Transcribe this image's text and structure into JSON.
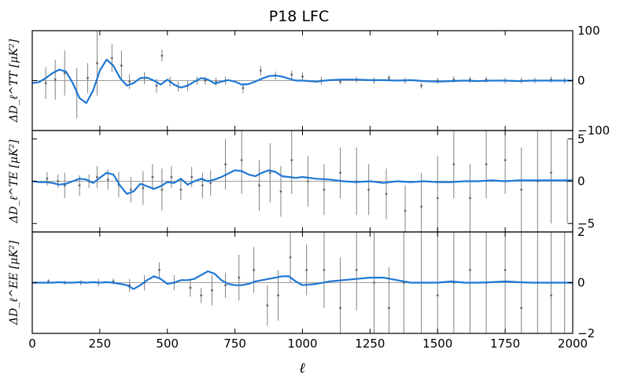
{
  "chart_data": {
    "type": "line",
    "title": "P18 LFC",
    "xlabel": "ℓ",
    "xlim": [
      0,
      2000
    ],
    "xticks": [
      0,
      250,
      500,
      750,
      1000,
      1250,
      1500,
      1750,
      2000
    ],
    "grid": false,
    "panels": [
      {
        "ylabel": "ΔD_ℓ^TT [μK²]",
        "ylim": [
          -100,
          100
        ],
        "yticks": [
          -100,
          0,
          100
        ],
        "curve": {
          "x": [
            0,
            25,
            50,
            75,
            100,
            125,
            150,
            175,
            200,
            225,
            250,
            275,
            300,
            325,
            350,
            375,
            400,
            425,
            450,
            475,
            500,
            525,
            550,
            575,
            600,
            625,
            650,
            675,
            700,
            725,
            750,
            775,
            800,
            825,
            850,
            875,
            900,
            925,
            950,
            975,
            1000,
            1050,
            1100,
            1150,
            1200,
            1250,
            1300,
            1350,
            1400,
            1450,
            1500,
            1550,
            1600,
            1650,
            1700,
            1750,
            1800,
            1850,
            1900,
            1950,
            2000
          ],
          "y": [
            -5,
            -3,
            5,
            15,
            22,
            18,
            -5,
            -35,
            -45,
            -20,
            20,
            42,
            30,
            5,
            -10,
            -5,
            5,
            6,
            0,
            -8,
            2,
            -8,
            -14,
            -10,
            -2,
            5,
            2,
            -6,
            -2,
            1,
            -2,
            -8,
            -7,
            -2,
            4,
            9,
            10,
            8,
            4,
            0,
            0,
            -2,
            1,
            2,
            2,
            1,
            1,
            0,
            1,
            -1,
            -2,
            -1,
            0,
            -1,
            0,
            0,
            -1,
            0,
            0,
            0,
            0
          ]
        },
        "points": [
          {
            "x": 50,
            "y": -5,
            "err": 32
          },
          {
            "x": 85,
            "y": 2,
            "err": 40
          },
          {
            "x": 120,
            "y": 15,
            "err": 45
          },
          {
            "x": 165,
            "y": -25,
            "err": 50
          },
          {
            "x": 205,
            "y": 5,
            "err": 30
          },
          {
            "x": 240,
            "y": 35,
            "err": 65
          },
          {
            "x": 295,
            "y": 45,
            "err": 28
          },
          {
            "x": 330,
            "y": 30,
            "err": 30
          },
          {
            "x": 360,
            "y": -2,
            "err": 15
          },
          {
            "x": 415,
            "y": 5,
            "err": 12
          },
          {
            "x": 460,
            "y": -10,
            "err": 14
          },
          {
            "x": 480,
            "y": 50,
            "err": 12
          },
          {
            "x": 510,
            "y": -2,
            "err": 10
          },
          {
            "x": 540,
            "y": -12,
            "err": 10
          },
          {
            "x": 575,
            "y": -10,
            "err": 10
          },
          {
            "x": 610,
            "y": 0,
            "err": 8
          },
          {
            "x": 640,
            "y": 0,
            "err": 8
          },
          {
            "x": 680,
            "y": -2,
            "err": 8
          },
          {
            "x": 715,
            "y": 0,
            "err": 8
          },
          {
            "x": 780,
            "y": -15,
            "err": 10
          },
          {
            "x": 845,
            "y": 20,
            "err": 10
          },
          {
            "x": 900,
            "y": 10,
            "err": 8
          },
          {
            "x": 960,
            "y": 12,
            "err": 8
          },
          {
            "x": 1000,
            "y": 8,
            "err": 8
          },
          {
            "x": 1070,
            "y": 0,
            "err": 8
          },
          {
            "x": 1140,
            "y": -2,
            "err": 6
          },
          {
            "x": 1200,
            "y": 2,
            "err": 6
          },
          {
            "x": 1265,
            "y": 0,
            "err": 6
          },
          {
            "x": 1320,
            "y": 5,
            "err": 6
          },
          {
            "x": 1380,
            "y": 0,
            "err": 6
          },
          {
            "x": 1440,
            "y": -10,
            "err": 6
          },
          {
            "x": 1500,
            "y": 0,
            "err": 6
          },
          {
            "x": 1560,
            "y": 2,
            "err": 6
          },
          {
            "x": 1620,
            "y": 2,
            "err": 6
          },
          {
            "x": 1680,
            "y": 2,
            "err": 6
          },
          {
            "x": 1750,
            "y": 0,
            "err": 6
          },
          {
            "x": 1810,
            "y": 0,
            "err": 6
          },
          {
            "x": 1860,
            "y": 0,
            "err": 6
          },
          {
            "x": 1920,
            "y": 2,
            "err": 6
          },
          {
            "x": 1970,
            "y": 0,
            "err": 6
          }
        ]
      },
      {
        "ylabel": "ΔD_ℓ^TE [μK²]",
        "ylim": [
          -6,
          6
        ],
        "yticks": [
          -5,
          0,
          5
        ],
        "curve": {
          "x": [
            0,
            25,
            50,
            75,
            100,
            125,
            150,
            175,
            200,
            225,
            250,
            275,
            300,
            325,
            350,
            375,
            400,
            425,
            450,
            475,
            500,
            525,
            550,
            575,
            600,
            625,
            650,
            675,
            700,
            725,
            750,
            775,
            800,
            825,
            850,
            875,
            900,
            925,
            950,
            975,
            1000,
            1050,
            1100,
            1150,
            1200,
            1250,
            1300,
            1350,
            1400,
            1450,
            1500,
            1550,
            1600,
            1650,
            1700,
            1750,
            1800,
            1850,
            1900,
            1950,
            2000
          ],
          "y": [
            0,
            -0.1,
            -0.1,
            -0.2,
            -0.4,
            -0.3,
            0,
            0.3,
            0.2,
            -0.2,
            0.4,
            1.0,
            0.8,
            -0.5,
            -1.5,
            -1.2,
            -0.3,
            -0.6,
            -0.9,
            -0.6,
            -0.1,
            -0.2,
            0.3,
            -0.4,
            0,
            0.3,
            0,
            0.2,
            0.5,
            0.9,
            1.3,
            1.2,
            0.8,
            0.6,
            1.0,
            1.3,
            1.1,
            0.6,
            0.5,
            0.4,
            0.5,
            0.3,
            0.2,
            0,
            -0.1,
            0,
            -0.2,
            0,
            -0.1,
            0,
            -0.1,
            -0.1,
            0,
            0,
            0.1,
            0,
            0.1,
            0.1,
            0.1,
            0.1,
            0.1
          ]
        },
        "points": [
          {
            "x": 55,
            "y": 0.3,
            "err": 0.8
          },
          {
            "x": 95,
            "y": 0,
            "err": 0.8
          },
          {
            "x": 120,
            "y": -0.5,
            "err": 1.5
          },
          {
            "x": 175,
            "y": -0.5,
            "err": 1.2
          },
          {
            "x": 210,
            "y": 0,
            "err": 0.8
          },
          {
            "x": 240,
            "y": 0.5,
            "err": 1.3
          },
          {
            "x": 280,
            "y": 0.2,
            "err": 1.2
          },
          {
            "x": 320,
            "y": -0.4,
            "err": 1.5
          },
          {
            "x": 365,
            "y": -1.0,
            "err": 1.5
          },
          {
            "x": 410,
            "y": -0.8,
            "err": 2.0
          },
          {
            "x": 445,
            "y": 0.5,
            "err": 1.5
          },
          {
            "x": 480,
            "y": -1.0,
            "err": 2.5
          },
          {
            "x": 515,
            "y": 0.5,
            "err": 1.3
          },
          {
            "x": 550,
            "y": -1.0,
            "err": 1.2
          },
          {
            "x": 590,
            "y": 0.5,
            "err": 1.2
          },
          {
            "x": 630,
            "y": -0.5,
            "err": 1.5
          },
          {
            "x": 660,
            "y": -0.2,
            "err": 1.5
          },
          {
            "x": 715,
            "y": 2.0,
            "err": 3.0
          },
          {
            "x": 775,
            "y": 2.5,
            "err": 4.0
          },
          {
            "x": 840,
            "y": -0.5,
            "err": 3.0
          },
          {
            "x": 880,
            "y": 1.0,
            "err": 3.5
          },
          {
            "x": 920,
            "y": -1.2,
            "err": 3.0
          },
          {
            "x": 960,
            "y": 2.5,
            "err": 4.0
          },
          {
            "x": 1020,
            "y": 0,
            "err": 3.0
          },
          {
            "x": 1080,
            "y": -1.0,
            "err": 3.0
          },
          {
            "x": 1140,
            "y": 1.0,
            "err": 3.0
          },
          {
            "x": 1200,
            "y": 0,
            "err": 4.0
          },
          {
            "x": 1245,
            "y": -1.0,
            "err": 3.0
          },
          {
            "x": 1310,
            "y": -1.5,
            "err": 3.0
          },
          {
            "x": 1380,
            "y": -3.5,
            "err": 3.0
          },
          {
            "x": 1440,
            "y": -3.0,
            "err": 4.0
          },
          {
            "x": 1500,
            "y": -2.0,
            "err": 5.0
          },
          {
            "x": 1560,
            "y": 2.0,
            "err": 4.0
          },
          {
            "x": 1620,
            "y": -2.0,
            "err": 4.0
          },
          {
            "x": 1680,
            "y": 2.0,
            "err": 4.0
          },
          {
            "x": 1750,
            "y": 2.5,
            "err": 4.0
          },
          {
            "x": 1810,
            "y": -1.0,
            "err": 5.0
          },
          {
            "x": 1870,
            "y": 0,
            "err": 6.0
          },
          {
            "x": 1920,
            "y": 1.0,
            "err": 6.0
          },
          {
            "x": 1980,
            "y": 0,
            "err": 5.0
          }
        ]
      },
      {
        "ylabel": "ΔD_ℓ^EE [μK²]",
        "ylim": [
          -2,
          2
        ],
        "yticks": [
          -2,
          0,
          2
        ],
        "curve": {
          "x": [
            0,
            25,
            50,
            75,
            100,
            125,
            150,
            175,
            200,
            225,
            250,
            275,
            300,
            325,
            350,
            375,
            400,
            425,
            450,
            475,
            500,
            525,
            550,
            575,
            600,
            625,
            650,
            675,
            700,
            725,
            750,
            775,
            800,
            825,
            850,
            875,
            900,
            925,
            950,
            975,
            1000,
            1050,
            1100,
            1150,
            1200,
            1250,
            1300,
            1350,
            1400,
            1450,
            1500,
            1550,
            1600,
            1650,
            1700,
            1750,
            1800,
            1850,
            1900,
            1950,
            2000
          ],
          "y": [
            0,
            0,
            0,
            0,
            0.02,
            0,
            0,
            0.02,
            0,
            0.02,
            0,
            0.02,
            0,
            -0.05,
            -0.1,
            -0.25,
            -0.1,
            0.1,
            0.25,
            0.15,
            -0.05,
            0,
            0.1,
            0.1,
            0.15,
            0.3,
            0.45,
            0.35,
            0.1,
            -0.05,
            -0.1,
            -0.1,
            -0.05,
            0.05,
            0.1,
            0.15,
            0.2,
            0.25,
            0.25,
            0.05,
            -0.1,
            -0.05,
            0.05,
            0.1,
            0.15,
            0.2,
            0.2,
            0.1,
            0,
            0,
            0,
            0.05,
            0,
            0,
            0.02,
            0.05,
            0.02,
            0,
            0,
            0,
            0
          ]
        },
        "points": [
          {
            "x": 60,
            "y": 0.05,
            "err": 0.08
          },
          {
            "x": 120,
            "y": 0,
            "err": 0.08
          },
          {
            "x": 180,
            "y": 0,
            "err": 0.1
          },
          {
            "x": 245,
            "y": 0,
            "err": 0.15
          },
          {
            "x": 300,
            "y": 0.05,
            "err": 0.12
          },
          {
            "x": 360,
            "y": -0.1,
            "err": 0.25
          },
          {
            "x": 415,
            "y": 0,
            "err": 0.3
          },
          {
            "x": 470,
            "y": 0.5,
            "err": 0.3
          },
          {
            "x": 525,
            "y": 0,
            "err": 0.3
          },
          {
            "x": 585,
            "y": -0.2,
            "err": 0.35
          },
          {
            "x": 625,
            "y": -0.5,
            "err": 0.3
          },
          {
            "x": 665,
            "y": -0.3,
            "err": 0.6
          },
          {
            "x": 715,
            "y": -0.1,
            "err": 0.5
          },
          {
            "x": 765,
            "y": 0.2,
            "err": 0.9
          },
          {
            "x": 820,
            "y": 0.5,
            "err": 0.9
          },
          {
            "x": 870,
            "y": -0.9,
            "err": 0.8
          },
          {
            "x": 910,
            "y": -0.5,
            "err": 1.0
          },
          {
            "x": 955,
            "y": 1.0,
            "err": 1.0
          },
          {
            "x": 1015,
            "y": 0.5,
            "err": 1.0
          },
          {
            "x": 1080,
            "y": 0.5,
            "err": 1.5
          },
          {
            "x": 1140,
            "y": -1.0,
            "err": 2.0
          },
          {
            "x": 1200,
            "y": 0.5,
            "err": 1.6
          },
          {
            "x": 1265,
            "y": 0,
            "err": 2.0
          },
          {
            "x": 1320,
            "y": -1.0,
            "err": 1.6
          },
          {
            "x": 1375,
            "y": 0,
            "err": 2.5
          },
          {
            "x": 1440,
            "y": 0,
            "err": 2.5
          },
          {
            "x": 1500,
            "y": -0.5,
            "err": 3.0
          },
          {
            "x": 1560,
            "y": 0,
            "err": 3.0
          },
          {
            "x": 1620,
            "y": 0.5,
            "err": 3.0
          },
          {
            "x": 1680,
            "y": 0,
            "err": 3.5
          },
          {
            "x": 1750,
            "y": 0.5,
            "err": 3.0
          },
          {
            "x": 1810,
            "y": -1.0,
            "err": 3.5
          },
          {
            "x": 1870,
            "y": 0,
            "err": 3.5
          },
          {
            "x": 1920,
            "y": -0.5,
            "err": 3.5
          },
          {
            "x": 1970,
            "y": 0,
            "err": 3.5
          }
        ]
      }
    ]
  },
  "colors": {
    "curve": "#1f77d4",
    "errorbar": "#808080",
    "zero_line": "#808080",
    "axis": "#000000"
  }
}
